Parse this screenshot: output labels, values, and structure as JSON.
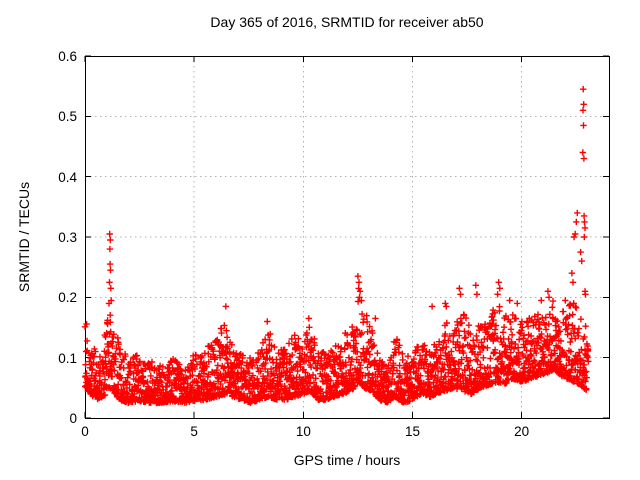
{
  "chart_data": {
    "type": "scatter",
    "title": "Day 365 of 2016, SRMTID for receiver ab50",
    "xlabel": "GPS time / hours",
    "ylabel": "SRMTID / TECUs",
    "xlim": [
      0,
      24
    ],
    "ylim": [
      0,
      0.6
    ],
    "xticks": [
      0,
      5,
      10,
      15,
      20
    ],
    "xtick_labels": [
      "0",
      "5",
      "10",
      "15",
      "20"
    ],
    "yticks": [
      0,
      0.1,
      0.2,
      0.3,
      0.4,
      0.5,
      0.6
    ],
    "ytick_labels": [
      "0",
      "0.1",
      "0.2",
      "0.3",
      "0.4",
      "0.5",
      "0.6"
    ],
    "grid": true,
    "legend": "none",
    "marker": "plus",
    "marker_color": "#ff0000",
    "grid_color": "#b0b0b0",
    "axis_color": "#000000",
    "background": "#ffffff",
    "x_data_range": [
      0,
      23.05
    ],
    "point_count": 2800,
    "seed": 987654321,
    "skew": 1.9,
    "x_jitter": 0.02,
    "envelope": [
      [
        0,
        0.05,
        0.17
      ],
      [
        0.25,
        0.04,
        0.135
      ],
      [
        0.5,
        0.03,
        0.11
      ],
      [
        0.8,
        0.035,
        0.125
      ],
      [
        1,
        0.04,
        0.16
      ],
      [
        1.15,
        0.05,
        0.185
      ],
      [
        1.35,
        0.04,
        0.155
      ],
      [
        1.6,
        0.03,
        0.12
      ],
      [
        2,
        0.025,
        0.1
      ],
      [
        2.5,
        0.028,
        0.105
      ],
      [
        3,
        0.025,
        0.095
      ],
      [
        3.5,
        0.025,
        0.09
      ],
      [
        4,
        0.028,
        0.1
      ],
      [
        4.5,
        0.025,
        0.09
      ],
      [
        5,
        0.028,
        0.105
      ],
      [
        5.5,
        0.03,
        0.115
      ],
      [
        6,
        0.035,
        0.13
      ],
      [
        6.5,
        0.04,
        0.175
      ],
      [
        6.8,
        0.035,
        0.12
      ],
      [
        7.2,
        0.03,
        0.105
      ],
      [
        7.6,
        0.025,
        0.1
      ],
      [
        8,
        0.03,
        0.11
      ],
      [
        8.4,
        0.035,
        0.15
      ],
      [
        8.8,
        0.03,
        0.11
      ],
      [
        9.2,
        0.03,
        0.12
      ],
      [
        9.6,
        0.035,
        0.145
      ],
      [
        10,
        0.04,
        0.13
      ],
      [
        10.3,
        0.045,
        0.155
      ],
      [
        10.7,
        0.03,
        0.11
      ],
      [
        11,
        0.03,
        0.11
      ],
      [
        11.4,
        0.035,
        0.12
      ],
      [
        11.8,
        0.04,
        0.13
      ],
      [
        12.2,
        0.045,
        0.165
      ],
      [
        12.55,
        0.06,
        0.22
      ],
      [
        12.8,
        0.05,
        0.19
      ],
      [
        13.1,
        0.045,
        0.155
      ],
      [
        13.5,
        0.03,
        0.1
      ],
      [
        13.8,
        0.025,
        0.09
      ],
      [
        14.2,
        0.035,
        0.15
      ],
      [
        14.6,
        0.025,
        0.1
      ],
      [
        15,
        0.03,
        0.11
      ],
      [
        15.4,
        0.04,
        0.125
      ],
      [
        15.8,
        0.035,
        0.115
      ],
      [
        16.1,
        0.04,
        0.125
      ],
      [
        16.5,
        0.045,
        0.16
      ],
      [
        16.9,
        0.05,
        0.15
      ],
      [
        17.3,
        0.045,
        0.185
      ],
      [
        17.7,
        0.04,
        0.145
      ],
      [
        18.1,
        0.05,
        0.155
      ],
      [
        18.5,
        0.055,
        0.165
      ],
      [
        18.9,
        0.06,
        0.2
      ],
      [
        19.2,
        0.055,
        0.17
      ],
      [
        19.6,
        0.065,
        0.185
      ],
      [
        20,
        0.06,
        0.16
      ],
      [
        20.4,
        0.065,
        0.17
      ],
      [
        20.8,
        0.07,
        0.175
      ],
      [
        21.2,
        0.075,
        0.185
      ],
      [
        21.5,
        0.08,
        0.2
      ],
      [
        21.8,
        0.07,
        0.185
      ],
      [
        22.1,
        0.065,
        0.185
      ],
      [
        22.4,
        0.06,
        0.2
      ],
      [
        22.7,
        0.055,
        0.175
      ],
      [
        22.95,
        0.045,
        0.155
      ],
      [
        23.05,
        0.05,
        0.12
      ]
    ],
    "outliers": [
      [
        1.13,
        0.305
      ],
      [
        1.16,
        0.295
      ],
      [
        1.14,
        0.28
      ],
      [
        1.15,
        0.255
      ],
      [
        1.17,
        0.245
      ],
      [
        1.12,
        0.225
      ],
      [
        1.18,
        0.215
      ],
      [
        1.2,
        0.195
      ],
      [
        1.1,
        0.19
      ],
      [
        6.45,
        0.185
      ],
      [
        8.35,
        0.16
      ],
      [
        10.25,
        0.165
      ],
      [
        12.5,
        0.235
      ],
      [
        12.55,
        0.225
      ],
      [
        12.6,
        0.21
      ],
      [
        13.3,
        0.165
      ],
      [
        15.9,
        0.185
      ],
      [
        16.5,
        0.19
      ],
      [
        16.55,
        0.185
      ],
      [
        17.15,
        0.215
      ],
      [
        17.2,
        0.205
      ],
      [
        17.9,
        0.22
      ],
      [
        17.95,
        0.205
      ],
      [
        18.95,
        0.225
      ],
      [
        19.0,
        0.215
      ],
      [
        18.9,
        0.205
      ],
      [
        19.45,
        0.195
      ],
      [
        19.8,
        0.19
      ],
      [
        20.9,
        0.195
      ],
      [
        21.2,
        0.21
      ],
      [
        21.25,
        0.2
      ],
      [
        22.0,
        0.195
      ],
      [
        22.3,
        0.24
      ],
      [
        22.35,
        0.225
      ],
      [
        22.55,
        0.34
      ],
      [
        22.5,
        0.325
      ],
      [
        22.45,
        0.305
      ],
      [
        22.4,
        0.3
      ],
      [
        22.7,
        0.275
      ],
      [
        22.75,
        0.26
      ],
      [
        22.82,
        0.545
      ],
      [
        22.84,
        0.52
      ],
      [
        22.81,
        0.51
      ],
      [
        22.83,
        0.485
      ],
      [
        22.8,
        0.44
      ],
      [
        22.85,
        0.43
      ],
      [
        22.86,
        0.335
      ],
      [
        22.88,
        0.325
      ],
      [
        22.9,
        0.315
      ],
      [
        22.87,
        0.3
      ],
      [
        22.9,
        0.21
      ],
      [
        22.92,
        0.205
      ]
    ]
  }
}
